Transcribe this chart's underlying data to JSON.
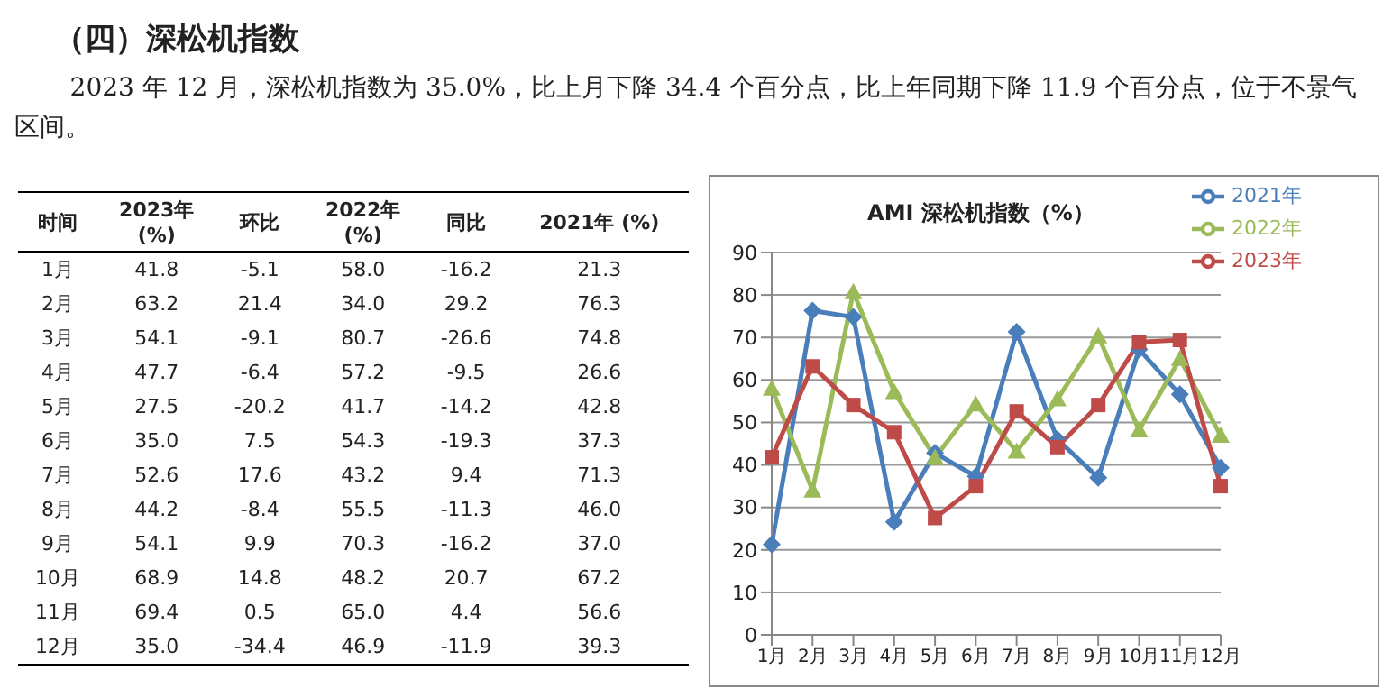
{
  "chart_data": {
    "type": "line",
    "title": "（四）深松机指数",
    "subtitle": "2023 年 12 月，深松机指数为 35.0%，比上月下降 34.4 个百分点，比上年同期下降 11.9 个百分点，位于不景气区间。",
    "annotations": [
      "AMI 深松机指数（%）",
      "时间",
      "环比",
      "同比",
      "(%)",
      "-5.1",
      "21.4",
      "-9.1",
      "-6.4",
      "-20.2",
      "7.5",
      "17.6",
      "-8.4",
      "9.9",
      "14.8",
      "0.5",
      "-34.4",
      "-16.2",
      "29.2",
      "-26.6",
      "-9.5",
      "-14.2",
      "-19.3",
      "9.4",
      "-11.3",
      "-16.2",
      "20.7",
      "4.4",
      "-11.9",
      "41.8",
      "63.2",
      "54.1",
      "47.7",
      "27.5",
      "35.0",
      "52.6",
      "44.2",
      "54.1",
      "68.9",
      "69.4",
      "35.0",
      "58.0",
      "34.0",
      "80.7",
      "57.2",
      "41.7",
      "54.3",
      "43.2",
      "55.5",
      "70.3",
      "48.2",
      "65.0",
      "46.9",
      "21.3",
      "76.3",
      "74.8",
      "26.6",
      "42.8",
      "37.3",
      "71.3",
      "46.0",
      "37.0",
      "67.2",
      "56.6",
      "39.3"
    ],
    "categories": [
      "1月",
      "2月",
      "3月",
      "4月",
      "5月",
      "6月",
      "7月",
      "8月",
      "9月",
      "10月",
      "11月",
      "12月"
    ],
    "series": [
      {
        "name": "2021年",
        "color": "#4a7ebb",
        "marker": "diamond",
        "values": [
          21.3,
          76.3,
          74.8,
          26.6,
          42.8,
          37.3,
          71.3,
          46.0,
          37.0,
          67.2,
          56.6,
          39.3
        ]
      },
      {
        "name": "2022年",
        "color": "#9bbb59",
        "marker": "triangle",
        "values": [
          58.0,
          34.0,
          80.7,
          57.2,
          41.7,
          54.3,
          43.2,
          55.5,
          70.3,
          48.2,
          65.0,
          46.9
        ]
      },
      {
        "name": "2023年",
        "color": "#be4b48",
        "marker": "square",
        "values": [
          41.8,
          63.2,
          54.1,
          47.7,
          27.5,
          35.0,
          52.6,
          44.2,
          54.1,
          68.9,
          69.4,
          35.0
        ]
      }
    ],
    "ylim": [
      0,
      90
    ],
    "yticks": [
      0,
      10,
      20,
      30,
      40,
      50,
      60,
      70,
      80,
      90
    ],
    "grid": "y",
    "legend": "top right"
  }
}
